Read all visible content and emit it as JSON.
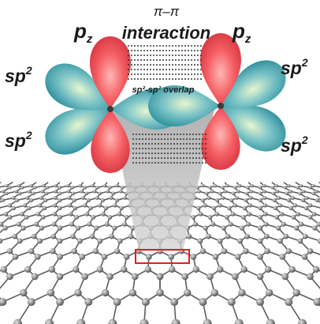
{
  "labels": {
    "pi_pi": "π–π",
    "interaction": "interaction",
    "pz": "p",
    "pz_sub": "z",
    "sp2": "sp",
    "sp2_sup": "2",
    "overlap": "sp²-sp² overlap"
  },
  "colors": {
    "lobe_red": "#f15a5f",
    "lobe_teal": "#2e9aa8",
    "cone_gray": "#b9b9b9",
    "bond_gray": "#5c5c5c",
    "atom_gray": "#8b8b8b",
    "highlight_box": "#e02020",
    "text": "#1a1a1a"
  },
  "icons": {
    "orbital_left": "hybrid-orbital-icon",
    "orbital_right": "hybrid-orbital-icon",
    "lattice": "graphene-lattice-icon"
  }
}
